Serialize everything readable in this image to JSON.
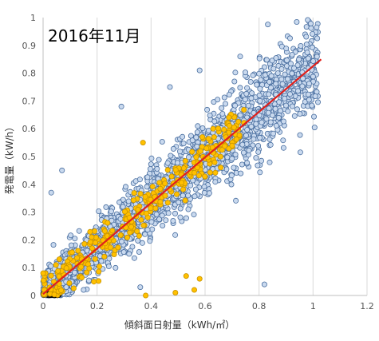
{
  "chart_data": {
    "type": "scatter",
    "title": "2016年11月",
    "xlabel": "傾斜面日射量（kWh/㎡）",
    "ylabel": "発電量（kW/h）",
    "xlim": [
      0,
      1.2
    ],
    "ylim": [
      0,
      1
    ],
    "xticks": [
      "0",
      "0.2",
      "0.4",
      "0.6",
      "0.8",
      "1",
      "1.2"
    ],
    "yticks": [
      "0",
      "0.1",
      "0.2",
      "0.3",
      "0.4",
      "0.5",
      "0.6",
      "0.7",
      "0.8",
      "0.9",
      "1"
    ],
    "grid": "vertical",
    "legend": "none",
    "trendline": {
      "slope": 0.82,
      "intercept": 0.005,
      "x_range": [
        0,
        1.03
      ],
      "color": "#e0201b"
    },
    "series": [
      {
        "marker_fill": "#c9d9ee",
        "marker_stroke": "#4a6fa0",
        "description_points": "dense cloud of blue-gray markers following the trend, spread ±0.15",
        "points_count": 2600,
        "noise_sd": 0.07,
        "x_distribution": "uniform 0–1.02 with more points below 0.1",
        "outliers": [
          [
            0.03,
            0.37
          ],
          [
            0.07,
            0.45
          ],
          [
            0.29,
            0.68
          ],
          [
            0.47,
            0.75
          ],
          [
            0.58,
            0.81
          ],
          [
            0.73,
            0.86
          ],
          [
            0.82,
            0.04
          ],
          [
            0.36,
            0.03
          ],
          [
            0.15,
            0.02
          ]
        ]
      },
      {
        "marker_fill": "#ffc000",
        "marker_stroke": "#c89400",
        "points_count": 320,
        "noise_sd": 0.035,
        "x_range": [
          0,
          0.75
        ],
        "outliers": [
          [
            0.59,
            0.57
          ],
          [
            0.63,
            0.6
          ],
          [
            0.37,
            0.55
          ],
          [
            0.53,
            0.07
          ],
          [
            0.56,
            0.02
          ],
          [
            0.58,
            0.06
          ],
          [
            0.38,
            0.0
          ],
          [
            0.49,
            0.01
          ]
        ]
      }
    ],
    "near_zero_cluster": {
      "color": "#222222",
      "x_range": [
        0,
        0.06
      ],
      "y_range": [
        0,
        0.01
      ]
    }
  }
}
